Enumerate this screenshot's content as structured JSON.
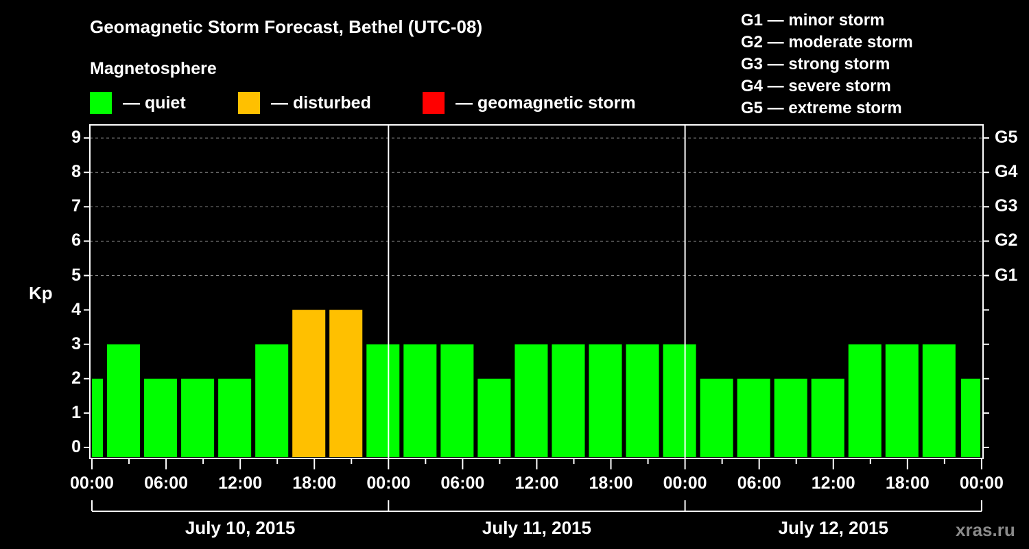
{
  "header": {
    "title": "Geomagnetic Storm Forecast, Bethel (UTC-08)",
    "subtitle": "Magnetosphere"
  },
  "legend": {
    "items": [
      {
        "label": "— quiet",
        "color": "#00ff00"
      },
      {
        "label": "— disturbed",
        "color": "#ffc000"
      },
      {
        "label": "— geomagnetic storm",
        "color": "#ff0000"
      }
    ]
  },
  "storm_scale": {
    "items": [
      "G1 — minor storm",
      "G2 — moderate storm",
      "G3 — strong storm",
      "G4 — severe storm",
      "G5 — extreme storm"
    ]
  },
  "axes": {
    "ylabel": "Kp",
    "yticks": [
      "0",
      "1",
      "2",
      "3",
      "4",
      "5",
      "6",
      "7",
      "8",
      "9"
    ],
    "gticks": [
      "G1",
      "G2",
      "G3",
      "G4",
      "G5"
    ],
    "xticks": [
      "00:00",
      "06:00",
      "12:00",
      "18:00",
      "00:00",
      "06:00",
      "12:00",
      "18:00",
      "00:00",
      "06:00",
      "12:00",
      "18:00",
      "00:00"
    ],
    "dates": [
      "July 10, 2015",
      "July 11, 2015",
      "July 12, 2015"
    ]
  },
  "watermark": "xras.ru",
  "chart_data": {
    "type": "bar",
    "title": "Geomagnetic Storm Forecast, Bethel (UTC-08)",
    "xlabel": "",
    "ylabel": "Kp",
    "ylim": [
      0,
      9
    ],
    "grid": "horizontal dashed at Kp 5-9",
    "legend_position": "top",
    "interval_hours": 3,
    "categories": [
      "Jul10 00:00 (partial)",
      "Jul10 01:00",
      "Jul10 04:00",
      "Jul10 07:00",
      "Jul10 10:00",
      "Jul10 13:00",
      "Jul10 16:00",
      "Jul10 19:00",
      "Jul10 22:00",
      "Jul11 01:00",
      "Jul11 04:00",
      "Jul11 07:00",
      "Jul11 10:00",
      "Jul11 13:00",
      "Jul11 16:00",
      "Jul11 19:00",
      "Jul11 22:00",
      "Jul12 01:00",
      "Jul12 04:00",
      "Jul12 07:00",
      "Jul12 10:00",
      "Jul12 13:00",
      "Jul12 16:00",
      "Jul12 19:00",
      "Jul12 22:00 (partial)"
    ],
    "values": [
      2,
      3,
      2,
      2,
      2,
      3,
      4,
      4,
      3,
      3,
      3,
      2,
      3,
      3,
      3,
      3,
      3,
      2,
      2,
      2,
      2,
      3,
      3,
      3,
      2
    ],
    "status": [
      "quiet",
      "quiet",
      "quiet",
      "quiet",
      "quiet",
      "quiet",
      "disturbed",
      "disturbed",
      "quiet",
      "quiet",
      "quiet",
      "quiet",
      "quiet",
      "quiet",
      "quiet",
      "quiet",
      "quiet",
      "quiet",
      "quiet",
      "quiet",
      "quiet",
      "quiet",
      "quiet",
      "quiet",
      "quiet"
    ],
    "secondary_axis": {
      "G1": 5,
      "G2": 6,
      "G3": 7,
      "G4": 8,
      "G5": 9
    }
  }
}
